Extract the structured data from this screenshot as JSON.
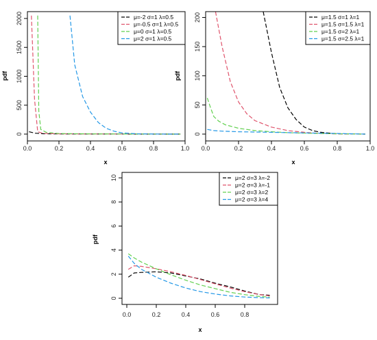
{
  "chart_data": [
    {
      "type": "line",
      "xlabel": "x",
      "ylabel": "pdf",
      "xlim": [
        0,
        1
      ],
      "ylim": [
        0,
        2000
      ],
      "x_ticks": [
        0.0,
        0.2,
        0.4,
        0.6,
        0.8,
        1.0
      ],
      "y_ticks": [
        0,
        500,
        1000,
        1500,
        2000
      ],
      "x_tick_labels": [
        "0.0",
        "0.2",
        "0.4",
        "0.6",
        "0.8",
        "1.0"
      ],
      "y_tick_labels": [
        "0",
        "500",
        "1000",
        "1500",
        "2000"
      ],
      "legend_position": "top-right",
      "grid": false,
      "series": [
        {
          "name": "μ=-2 σ=1 λ=0.5",
          "color": "#000000",
          "x": [
            0.01,
            0.05,
            0.1,
            0.2,
            0.3,
            0.5,
            0.7,
            0.97
          ],
          "y": [
            40,
            15,
            6,
            3,
            2,
            1,
            0.5,
            0
          ]
        },
        {
          "name": "μ=-0.5 σ=1 λ=0.5",
          "color": "#df536b",
          "x": [
            0.025,
            0.045,
            0.065,
            0.1,
            0.2,
            0.4,
            0.7,
            0.97
          ],
          "y": [
            2050,
            600,
            40,
            12,
            5,
            2,
            1,
            0
          ]
        },
        {
          "name": "μ=0 σ=1 λ=0.5",
          "color": "#61d04f",
          "x": [
            0.065,
            0.072,
            0.085,
            0.12,
            0.2,
            0.4,
            0.7,
            0.97
          ],
          "y": [
            2050,
            400,
            80,
            30,
            10,
            3,
            1,
            0
          ]
        },
        {
          "name": "μ=2 σ=1 λ=0.5",
          "color": "#2297e6",
          "x": [
            0.27,
            0.3,
            0.35,
            0.4,
            0.45,
            0.5,
            0.55,
            0.6,
            0.7,
            0.8,
            0.9,
            0.97
          ],
          "y": [
            2050,
            1200,
            650,
            380,
            200,
            100,
            50,
            20,
            5,
            1,
            0.2,
            0
          ]
        }
      ]
    },
    {
      "type": "line",
      "xlabel": "x",
      "ylabel": "pdf",
      "xlim": [
        0,
        1
      ],
      "ylim": [
        0,
        210
      ],
      "x_ticks": [
        0.0,
        0.2,
        0.4,
        0.6,
        0.8,
        1.0
      ],
      "y_ticks": [
        0,
        50,
        100,
        150,
        200
      ],
      "x_tick_labels": [
        "0.0",
        "0.2",
        "0.4",
        "0.6",
        "0.8",
        "1.0"
      ],
      "y_tick_labels": [
        "0",
        "50",
        "100",
        "150",
        "200"
      ],
      "legend_position": "top-right",
      "grid": false,
      "series": [
        {
          "name": "μ=1.5 σ=1 λ=1",
          "color": "#000000",
          "x": [
            0.35,
            0.4,
            0.45,
            0.5,
            0.55,
            0.6,
            0.65,
            0.7,
            0.8,
            0.9,
            0.97
          ],
          "y": [
            210,
            140,
            80,
            45,
            25,
            12,
            6,
            3,
            0.5,
            0.1,
            0
          ]
        },
        {
          "name": "μ=1.5 σ=1.5 λ=1",
          "color": "#df536b",
          "x": [
            0.06,
            0.1,
            0.15,
            0.2,
            0.25,
            0.3,
            0.4,
            0.5,
            0.6,
            0.7,
            0.8,
            0.97
          ],
          "y": [
            210,
            150,
            90,
            55,
            35,
            23,
            12,
            6,
            3,
            1,
            0.3,
            0
          ]
        },
        {
          "name": "μ=1.5 σ=2 λ=1",
          "color": "#61d04f",
          "x": [
            0.01,
            0.03,
            0.05,
            0.08,
            0.12,
            0.2,
            0.3,
            0.4,
            0.5,
            0.6,
            0.8,
            0.97
          ],
          "y": [
            62,
            45,
            30,
            22,
            16,
            10,
            6,
            4,
            2.5,
            1.5,
            0.5,
            0
          ]
        },
        {
          "name": "μ=1.5 σ=2.5 λ=1",
          "color": "#2297e6",
          "x": [
            0.01,
            0.05,
            0.1,
            0.2,
            0.3,
            0.4,
            0.5,
            0.6,
            0.7,
            0.8,
            0.97
          ],
          "y": [
            8,
            6,
            5,
            4,
            3.5,
            3,
            2.5,
            2,
            1.5,
            1,
            0
          ]
        }
      ]
    },
    {
      "type": "line",
      "xlabel": "x",
      "ylabel": "pdf",
      "xlim": [
        0,
        1
      ],
      "ylim": [
        0,
        10
      ],
      "x_ticks": [
        0.0,
        0.2,
        0.4,
        0.6,
        0.8
      ],
      "y_ticks": [
        0,
        2,
        4,
        6,
        8,
        10
      ],
      "x_tick_labels": [
        "0.0",
        "0.2",
        "0.4",
        "0.6",
        "0.8"
      ],
      "y_tick_labels": [
        "0",
        "2",
        "4",
        "6",
        "8",
        "10"
      ],
      "legend_position": "top-right",
      "grid": false,
      "series": [
        {
          "name": "μ=2 σ=3 λ=-2",
          "color": "#000000",
          "x": [
            0.01,
            0.05,
            0.1,
            0.2,
            0.3,
            0.4,
            0.5,
            0.6,
            0.7,
            0.8,
            0.9,
            0.97
          ],
          "y": [
            1.75,
            2.1,
            2.15,
            2.2,
            2.1,
            1.85,
            1.6,
            1.25,
            0.95,
            0.6,
            0.3,
            0.25
          ]
        },
        {
          "name": "μ=2 σ=3 λ=-1",
          "color": "#df536b",
          "x": [
            0.01,
            0.05,
            0.1,
            0.2,
            0.3,
            0.4,
            0.5,
            0.6,
            0.7,
            0.8,
            0.9,
            0.97
          ],
          "y": [
            2.4,
            2.7,
            2.65,
            2.45,
            2.2,
            1.9,
            1.55,
            1.2,
            0.85,
            0.55,
            0.3,
            0.2
          ]
        },
        {
          "name": "μ=2 σ=3 λ=2",
          "color": "#61d04f",
          "x": [
            0.01,
            0.05,
            0.1,
            0.2,
            0.3,
            0.4,
            0.5,
            0.6,
            0.7,
            0.8,
            0.9,
            0.97
          ],
          "y": [
            3.7,
            3.35,
            3.0,
            2.45,
            1.95,
            1.5,
            1.1,
            0.8,
            0.5,
            0.3,
            0.15,
            0.1
          ]
        },
        {
          "name": "μ=2 σ=3 λ=4",
          "color": "#2297e6",
          "x": [
            0.01,
            0.05,
            0.1,
            0.2,
            0.3,
            0.4,
            0.5,
            0.6,
            0.7,
            0.8,
            0.9,
            0.97
          ],
          "y": [
            3.5,
            2.9,
            2.4,
            1.75,
            1.25,
            0.85,
            0.55,
            0.35,
            0.2,
            0.1,
            0.05,
            0.03
          ]
        }
      ]
    }
  ]
}
